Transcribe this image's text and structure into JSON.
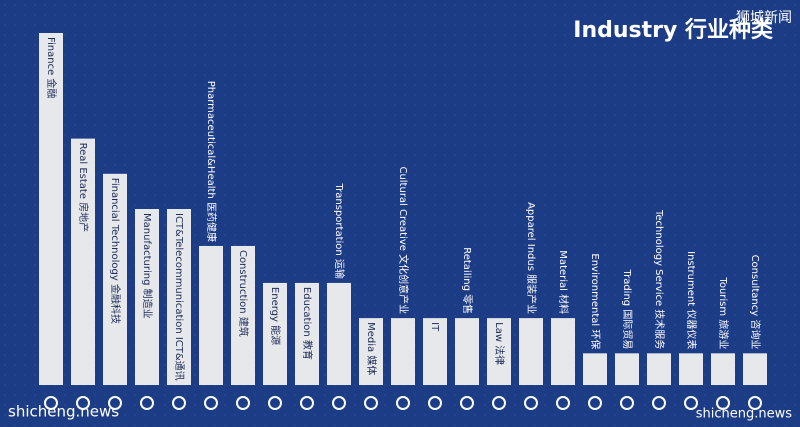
{
  "chart_data": {
    "type": "bar",
    "title": "Industry 行业种类",
    "categories": [
      "Finance 金融",
      "Real Estate 房地产",
      "Financial Technology 金融科技",
      "Manufacturing 制造业",
      "ICT&Telecommunication ICT&通讯",
      "Pharmaceutical&Health 医药健康",
      "Construction 建筑",
      "Energy 能源",
      "Education 教育",
      "Transportation 运输",
      "Media 媒体",
      "Cultural Creative 文化创意产业",
      "IT",
      "Retailing 零售",
      "Law 法律",
      "Apparel Indus 服装产业",
      "Material 材料",
      "Environmental 环保",
      "Trading 国际贸易",
      "Technology Service 技术服务",
      "Instrument 仪器仪表",
      "Tourism 旅游业",
      "Consultancy 咨询业"
    ],
    "values": [
      100,
      70,
      60,
      50,
      50,
      39.5,
      39.5,
      29,
      29,
      29,
      19,
      19,
      19,
      19,
      19,
      19,
      19,
      9,
      9,
      9,
      9,
      9,
      9
    ],
    "color": "#e6e8ec",
    "ylim": [
      0,
      100
    ],
    "watermarks": [
      "狮城新闻",
      "shicheng.news",
      "shicheng.news"
    ]
  }
}
